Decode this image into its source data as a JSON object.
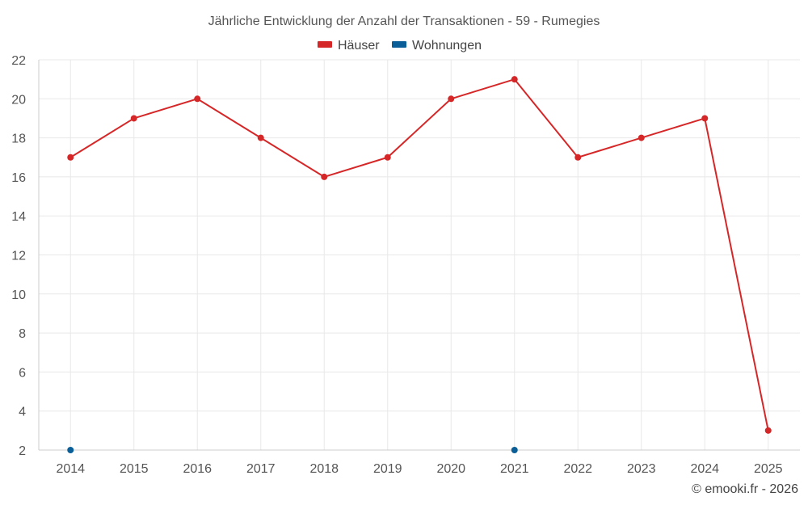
{
  "credit": "© emooki.fr - 2026",
  "chart_data": {
    "type": "line",
    "title": "Jährliche Entwicklung der Anzahl der Transaktionen - 59 - Rumegies",
    "xlabel": "",
    "ylabel": "",
    "categories": [
      "2014",
      "2015",
      "2016",
      "2017",
      "2018",
      "2019",
      "2020",
      "2021",
      "2022",
      "2023",
      "2024",
      "2025"
    ],
    "ylim": [
      2,
      22
    ],
    "yticks": [
      2,
      4,
      6,
      8,
      10,
      12,
      14,
      16,
      18,
      20,
      22
    ],
    "grid": true,
    "legend_position": "top-center",
    "series": [
      {
        "name": "Häuser",
        "color": "#d62728",
        "values": [
          17,
          19,
          20,
          18,
          16,
          17,
          20,
          21,
          17,
          18,
          19,
          3
        ]
      },
      {
        "name": "Wohnungen",
        "color": "#0b5f98",
        "values": [
          2,
          null,
          null,
          null,
          null,
          null,
          null,
          2,
          null,
          null,
          null,
          null
        ]
      }
    ]
  }
}
